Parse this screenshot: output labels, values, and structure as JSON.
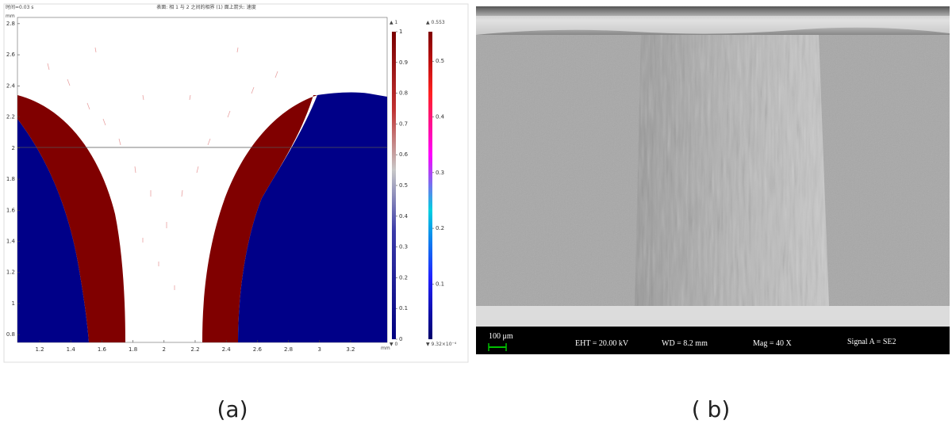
{
  "panel_a": {
    "time_label": "时间=0.03 s",
    "title": "表面: 相 1 与 2 之间的相界 (1)  面上箭头: 速度",
    "y_unit": "mm",
    "x_unit": "mm",
    "xlim": [
      1.057,
      3.435
    ],
    "ylim": [
      0.75,
      2.84
    ],
    "xticks": [
      1.2,
      1.4,
      1.6,
      1.8,
      2,
      2.2,
      2.4,
      2.6,
      2.8,
      3,
      3.2
    ],
    "yticks": [
      0.8,
      1,
      1.2,
      1.4,
      1.6,
      1.8,
      2,
      2.2,
      2.4,
      2.6,
      2.8
    ],
    "colorbar_1": {
      "max_label": "▲ 1",
      "min_label": "▼ 0",
      "lim": [
        0,
        1
      ],
      "ticks": [
        0,
        0.1,
        0.2,
        0.3,
        0.4,
        0.5,
        0.6,
        0.7,
        0.8,
        0.9,
        1
      ]
    },
    "colorbar_2": {
      "max_label": "▲ 0.553",
      "min_label": "▼ 9.32×10⁻⁴",
      "lim": [
        0.000932,
        0.553
      ],
      "ticks": [
        0.1,
        0.2,
        0.3,
        0.4,
        0.5
      ]
    },
    "caption": "(a)"
  },
  "panel_b": {
    "scale_bar": "100 μm",
    "eht": "EHT = 20.00 kV",
    "wd": "WD =  8.2 mm",
    "mag": "Mag =    40 X",
    "signal": "Signal A = SE2",
    "caption": "( b)"
  }
}
